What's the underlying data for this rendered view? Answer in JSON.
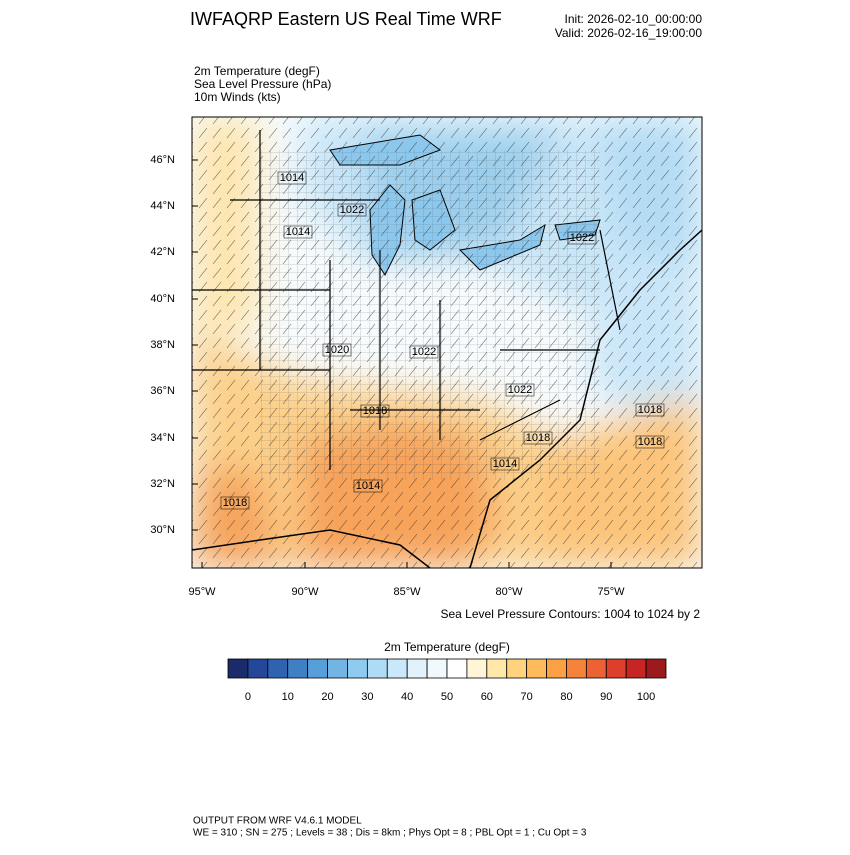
{
  "header": {
    "title": "IWFAQRP Eastern US Real Time WRF",
    "init": "Init: 2026-02-10_00:00:00",
    "valid": "Valid: 2026-02-16_19:00:00"
  },
  "fields": [
    "2m Temperature   (degF)",
    "Sea Level Pressure   (hPa)",
    "10m Winds   (kts)"
  ],
  "map": {
    "lat_labels": [
      "46°N",
      "44°N",
      "42°N",
      "40°N",
      "38°N",
      "36°N",
      "34°N",
      "32°N",
      "30°N"
    ],
    "lon_labels": [
      "95°W",
      "90°W",
      "85°W",
      "80°W",
      "75°W"
    ],
    "contour_labels": [
      "1014",
      "1022",
      "1014",
      "1022",
      "1020",
      "1022",
      "1022",
      "1018",
      "1018",
      "1018",
      "1018",
      "1014",
      "1014",
      "1018"
    ],
    "contour_note": "Sea Level Pressure Contours: 1004 to 1024 by 2"
  },
  "colorbar": {
    "title": "2m Temperature   (degF)",
    "colors": [
      "#1b2a6b",
      "#24479a",
      "#2f63b0",
      "#3f80c4",
      "#569fd8",
      "#72b4e4",
      "#8fcaf0",
      "#aedcf6",
      "#c9e8fa",
      "#e1f2fc",
      "#f2f9fd",
      "#ffffff",
      "#fff6d8",
      "#ffe8a8",
      "#ffd37e",
      "#fdbb5b",
      "#fca044",
      "#f5843a",
      "#ec6232",
      "#dd3f2a",
      "#c62524",
      "#9c1a1c"
    ],
    "ticks": [
      0,
      10,
      20,
      30,
      40,
      50,
      60,
      70,
      80,
      90,
      100
    ]
  },
  "footer": {
    "line1": "OUTPUT FROM WRF V4.6.1 MODEL",
    "line2": "WE = 310 ; SN = 275 ; Levels = 38 ; Dis = 8km ; Phys Opt = 8 ; PBL Opt = 1 ; Cu Opt = 3"
  }
}
